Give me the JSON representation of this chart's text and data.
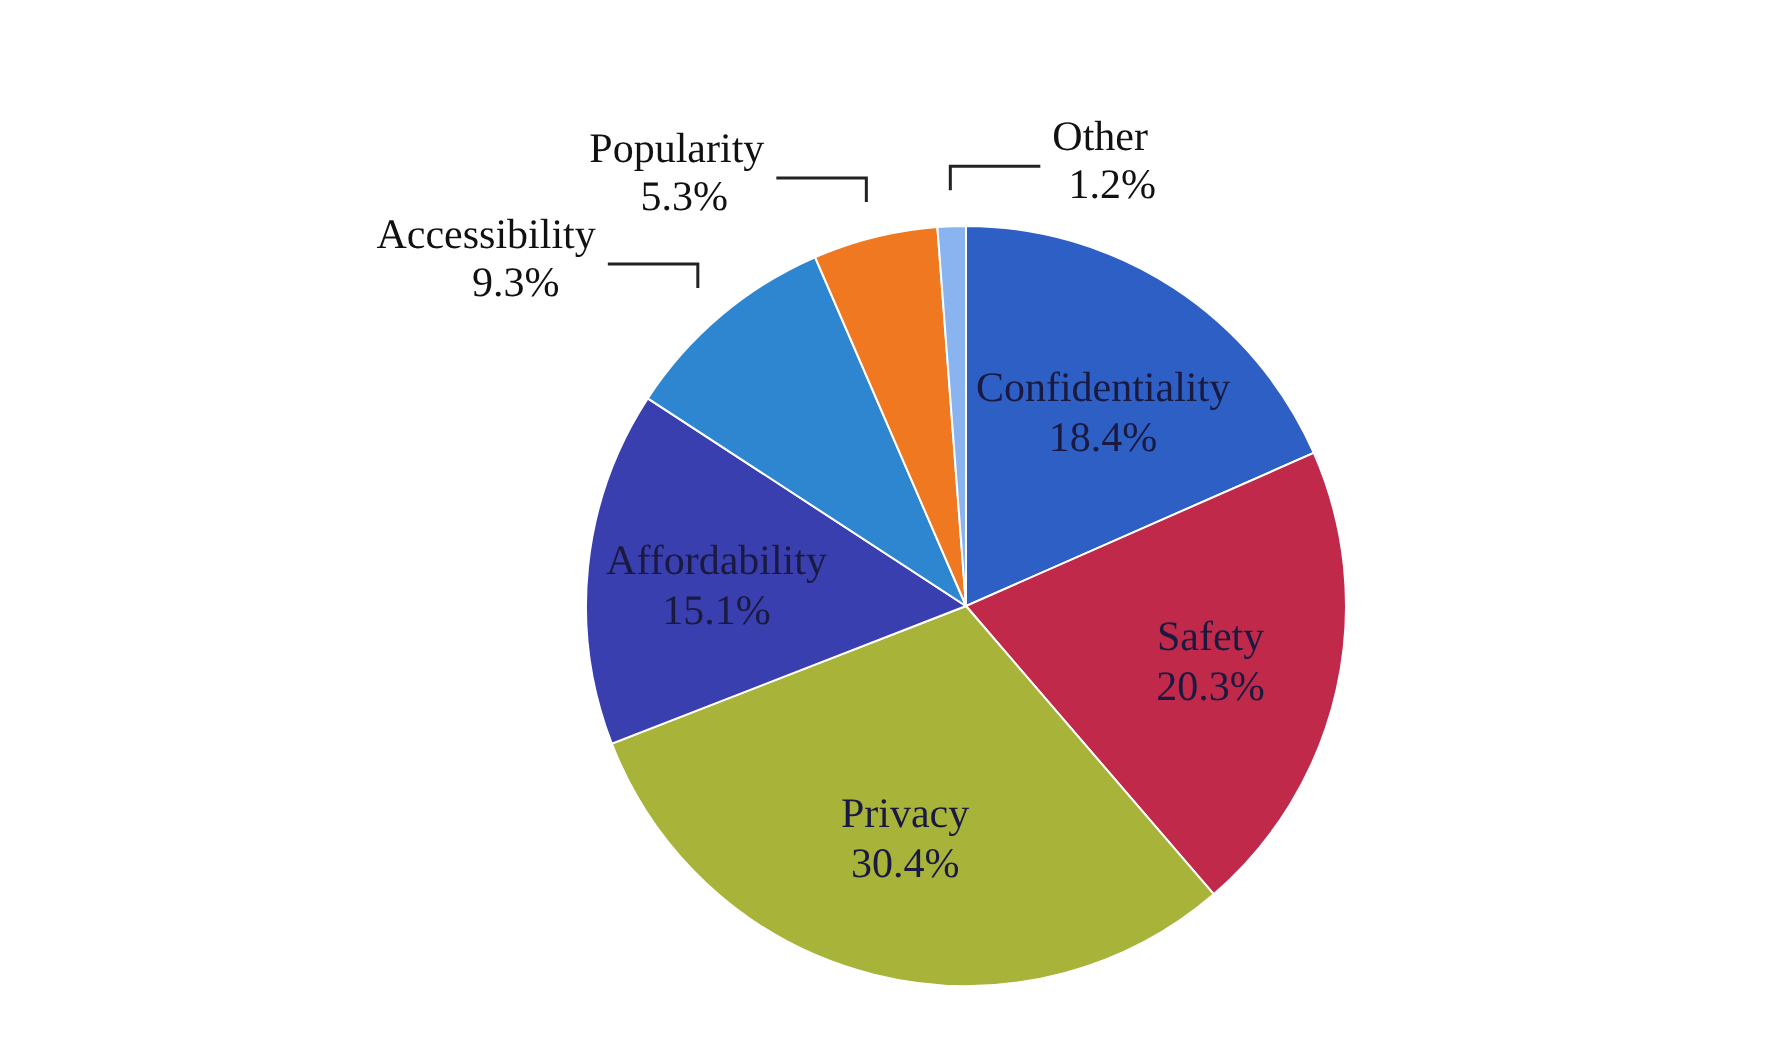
{
  "chart_data": {
    "type": "pie",
    "categories": [
      "Confidentiality",
      "Safety",
      "Privacy",
      "Affordability",
      "Accessibility",
      "Popularity",
      "Other"
    ],
    "values": [
      18.4,
      20.3,
      30.4,
      15.1,
      9.3,
      5.3,
      1.2
    ],
    "value_labels": [
      "18.4%",
      "20.3%",
      "30.4%",
      "15.1%",
      "9.3%",
      "5.3%",
      "1.2%"
    ],
    "colors": [
      "#2e5fc4",
      "#c0294a",
      "#a8b33a",
      "#3a3fb0",
      "#2f86d0",
      "#f07820",
      "#8ab4f0"
    ],
    "legend": false
  }
}
